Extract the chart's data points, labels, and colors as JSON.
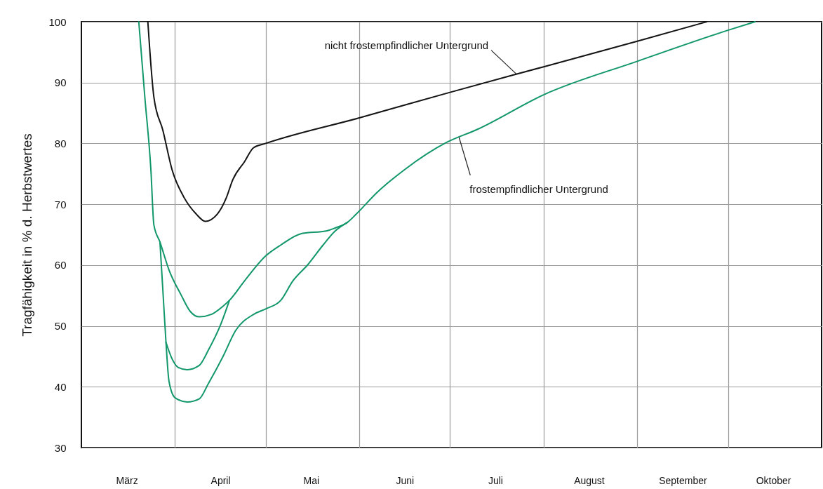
{
  "chart_data": {
    "type": "line",
    "ylabel": "Tragfähigkeit in % d. Herbstwertes",
    "xlim": [
      "--03-01",
      "--11-01"
    ],
    "xticks": [
      {
        "value": "--03-16",
        "label": "März"
      },
      {
        "value": "--04-01",
        "label": null
      },
      {
        "value": "--04-16",
        "label": "April"
      },
      {
        "value": "--05-01",
        "label": null
      },
      {
        "value": "--05-16",
        "label": "Mai"
      },
      {
        "value": "--06-01",
        "label": null
      },
      {
        "value": "--06-16",
        "label": "Juni"
      },
      {
        "value": "--07-01",
        "label": null
      },
      {
        "value": "--07-16",
        "label": "Juli"
      },
      {
        "value": "--08-01",
        "label": null
      },
      {
        "value": "--08-16",
        "label": "August"
      },
      {
        "value": "--09-01",
        "label": null
      },
      {
        "value": "--09-16",
        "label": "September"
      },
      {
        "value": "--10-01",
        "label": null
      },
      {
        "value": "--10-16",
        "label": "Oktober"
      }
    ],
    "ylim": [
      30,
      100
    ],
    "yticks": [
      30,
      40,
      50,
      60,
      70,
      80,
      90,
      100
    ],
    "grid": true,
    "series": [
      {
        "color": "#141414",
        "x": [
          "--03-23",
          "--03-25",
          "--03-28",
          "--03-31",
          "--04-04",
          "--04-08",
          "--04-11",
          "--04-15",
          "--04-18",
          "--04-20",
          "--04-24",
          "--04-27",
          "--05-01",
          "--06-01",
          "--07-01",
          "--08-01",
          "--09-01",
          "--09-24"
        ],
        "values": [
          100,
          87.6,
          82.1,
          75.7,
          71.1,
          68.4,
          67.2,
          68.4,
          71.1,
          73.9,
          77.0,
          79.3,
          80.0,
          84.2,
          88.4,
          92.6,
          96.8,
          100
        ]
      },
      {
        "color": "#12976b",
        "x": [
          "--03-20",
          "--03-22",
          "--03-24",
          "--03-25",
          "--03-27",
          "--03-30",
          "--04-03",
          "--04-06",
          "--04-09",
          "--04-13",
          "--04-17",
          "--04-19",
          "--04-24",
          "--05-01",
          "--05-06",
          "--05-13",
          "--05-21",
          "--05-24",
          "--05-28",
          "--05-31",
          "--06-07",
          "--06-16",
          "--06-30",
          "--07-10",
          "--08-01",
          "--09-01",
          "--10-01",
          "--10-10"
        ],
        "values": [
          100,
          87.6,
          75.7,
          66.6,
          63.8,
          59.2,
          55.1,
          52.4,
          51.5,
          51.9,
          53.3,
          54.2,
          57.4,
          61.5,
          63.3,
          65.2,
          65.6,
          66.1,
          67.0,
          68.4,
          72.0,
          75.7,
          80.2,
          82.3,
          88.0,
          93.5,
          98.6,
          100
        ]
      },
      {
        "color": "#12976b",
        "x": [
          "--03-27",
          "--03-28",
          "--03-29",
          "--03-30",
          "--04-01",
          "--04-05",
          "--04-09",
          "--04-12",
          "--04-17",
          "--04-21",
          "--04-27",
          "--05-01",
          "--05-06",
          "--05-10",
          "--05-15",
          "--05-20",
          "--05-24",
          "--05-28"
        ],
        "values": [
          63.8,
          55.6,
          47.3,
          40.9,
          38.2,
          37.5,
          38.0,
          40.5,
          45.1,
          49.2,
          51.9,
          52.8,
          54.2,
          57.4,
          60.1,
          63.3,
          65.6,
          67.0
        ]
      },
      {
        "color": "#12976b",
        "x": [
          "--03-29",
          "--03-31",
          "--04-02",
          "--04-05",
          "--04-09",
          "--04-12",
          "--04-16",
          "--04-19"
        ],
        "values": [
          47.3,
          44.6,
          43.2,
          42.8,
          43.5,
          46.0,
          50.1,
          54.2
        ]
      }
    ],
    "annotations": [
      {
        "text": "nicht frostempfindlicher Untergrund",
        "x": "--07-23",
        "y": 91.4
      },
      {
        "text": "frostempfindlicher Untergrund",
        "x": "--07-04",
        "y": 81.0
      }
    ]
  }
}
